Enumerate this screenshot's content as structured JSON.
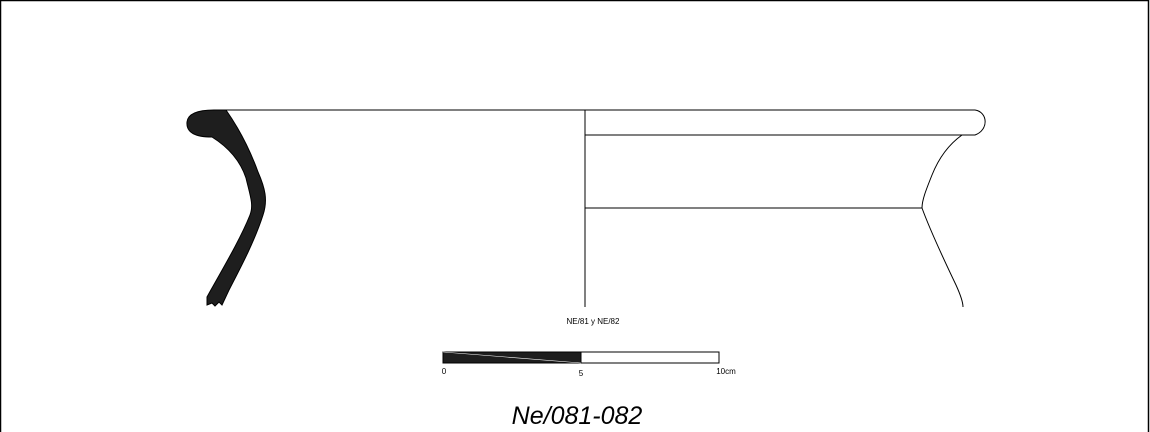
{
  "drawing": {
    "specimen_label": "NE/81 y NE/82",
    "catalog_number": "Ne/081-082",
    "scale_bar": {
      "tick_start": "0",
      "tick_middle": "5",
      "tick_end": "10cm"
    },
    "colors": {
      "line": "#000000",
      "section_fill": "#1e1e1e",
      "background": "#ffffff"
    }
  }
}
